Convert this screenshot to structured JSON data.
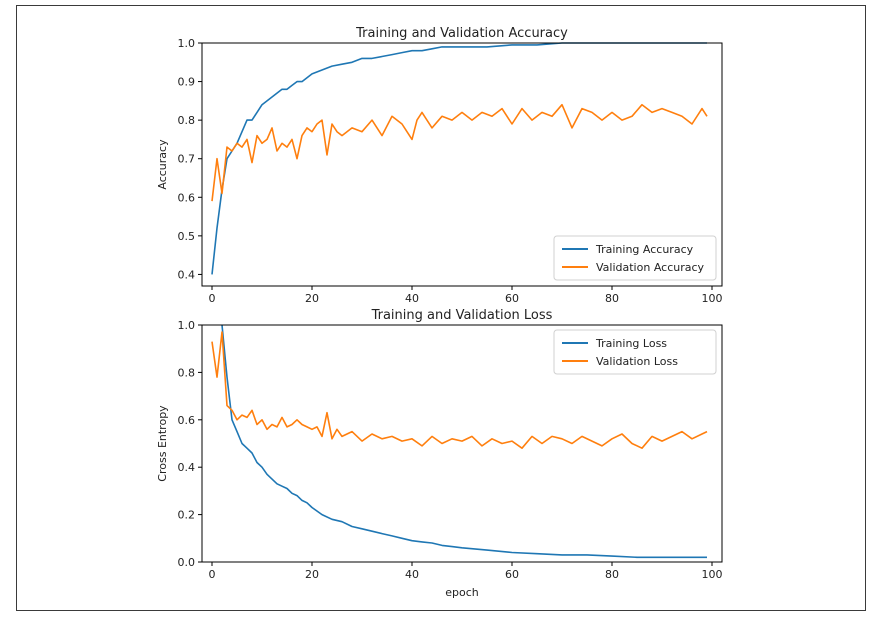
{
  "chart_data": [
    {
      "type": "line",
      "title": "Training and Validation Accuracy",
      "xlabel": "",
      "ylabel": "Accuracy",
      "xlim": [
        -2,
        102
      ],
      "ylim": [
        0.37,
        1.0
      ],
      "xticks": [
        "0",
        "20",
        "40",
        "60",
        "80",
        "100"
      ],
      "yticks": [
        "0.4",
        "0.5",
        "0.6",
        "0.7",
        "0.8",
        "0.9",
        "1.0"
      ],
      "grid": false,
      "legend": "lower-right",
      "series": [
        {
          "name": "Training Accuracy",
          "color": "#1f77b4",
          "x": [
            0,
            1,
            2,
            3,
            4,
            5,
            6,
            7,
            8,
            9,
            10,
            11,
            12,
            13,
            14,
            15,
            16,
            17,
            18,
            19,
            20,
            22,
            24,
            26,
            28,
            30,
            32,
            34,
            36,
            38,
            40,
            42,
            44,
            46,
            48,
            50,
            55,
            60,
            65,
            70,
            75,
            80,
            85,
            90,
            95,
            99
          ],
          "values": [
            0.4,
            0.52,
            0.62,
            0.7,
            0.72,
            0.74,
            0.77,
            0.8,
            0.8,
            0.82,
            0.84,
            0.85,
            0.86,
            0.87,
            0.88,
            0.88,
            0.89,
            0.9,
            0.9,
            0.91,
            0.92,
            0.93,
            0.94,
            0.945,
            0.95,
            0.96,
            0.96,
            0.965,
            0.97,
            0.975,
            0.98,
            0.98,
            0.985,
            0.99,
            0.99,
            0.99,
            0.99,
            0.995,
            0.995,
            1.0,
            1.0,
            1.0,
            1.0,
            1.0,
            1.0,
            1.0
          ]
        },
        {
          "name": "Validation Accuracy",
          "color": "#ff7f0e",
          "x": [
            0,
            1,
            2,
            3,
            4,
            5,
            6,
            7,
            8,
            9,
            10,
            11,
            12,
            13,
            14,
            15,
            16,
            17,
            18,
            19,
            20,
            21,
            22,
            23,
            24,
            25,
            26,
            28,
            30,
            32,
            34,
            36,
            38,
            40,
            41,
            42,
            44,
            46,
            48,
            50,
            52,
            54,
            56,
            58,
            60,
            62,
            64,
            66,
            68,
            70,
            72,
            74,
            76,
            78,
            80,
            82,
            84,
            86,
            88,
            90,
            92,
            94,
            96,
            98,
            99
          ],
          "values": [
            0.59,
            0.7,
            0.61,
            0.73,
            0.72,
            0.74,
            0.73,
            0.75,
            0.69,
            0.76,
            0.74,
            0.75,
            0.78,
            0.72,
            0.74,
            0.73,
            0.75,
            0.7,
            0.76,
            0.78,
            0.77,
            0.79,
            0.8,
            0.71,
            0.79,
            0.77,
            0.76,
            0.78,
            0.77,
            0.8,
            0.76,
            0.81,
            0.79,
            0.75,
            0.8,
            0.82,
            0.78,
            0.81,
            0.8,
            0.82,
            0.8,
            0.82,
            0.81,
            0.83,
            0.79,
            0.83,
            0.8,
            0.82,
            0.81,
            0.84,
            0.78,
            0.83,
            0.82,
            0.8,
            0.82,
            0.8,
            0.81,
            0.84,
            0.82,
            0.83,
            0.82,
            0.81,
            0.79,
            0.83,
            0.81
          ]
        }
      ]
    },
    {
      "type": "line",
      "title": "Training and Validation Loss",
      "xlabel": "epoch",
      "ylabel": "Cross Entropy",
      "xlim": [
        -2,
        102
      ],
      "ylim": [
        0.0,
        1.0
      ],
      "xticks": [
        "0",
        "20",
        "40",
        "60",
        "80",
        "100"
      ],
      "yticks": [
        "0.0",
        "0.2",
        "0.4",
        "0.6",
        "0.8",
        "1.0"
      ],
      "grid": false,
      "legend": "upper-right",
      "series": [
        {
          "name": "Training Loss",
          "color": "#1f77b4",
          "x": [
            2,
            3,
            4,
            5,
            6,
            7,
            8,
            9,
            10,
            11,
            12,
            13,
            14,
            15,
            16,
            17,
            18,
            19,
            20,
            22,
            24,
            26,
            28,
            30,
            32,
            34,
            36,
            38,
            40,
            42,
            44,
            46,
            48,
            50,
            55,
            60,
            65,
            70,
            75,
            80,
            85,
            90,
            95,
            99
          ],
          "values": [
            1.0,
            0.78,
            0.6,
            0.55,
            0.5,
            0.48,
            0.46,
            0.42,
            0.4,
            0.37,
            0.35,
            0.33,
            0.32,
            0.31,
            0.29,
            0.28,
            0.26,
            0.25,
            0.23,
            0.2,
            0.18,
            0.17,
            0.15,
            0.14,
            0.13,
            0.12,
            0.11,
            0.1,
            0.09,
            0.085,
            0.08,
            0.07,
            0.065,
            0.06,
            0.05,
            0.04,
            0.035,
            0.03,
            0.03,
            0.025,
            0.02,
            0.02,
            0.02,
            0.02
          ]
        },
        {
          "name": "Validation Loss",
          "color": "#ff7f0e",
          "x": [
            0,
            1,
            2,
            3,
            4,
            5,
            6,
            7,
            8,
            9,
            10,
            11,
            12,
            13,
            14,
            15,
            16,
            17,
            18,
            19,
            20,
            21,
            22,
            23,
            24,
            25,
            26,
            28,
            30,
            32,
            34,
            36,
            38,
            40,
            42,
            44,
            46,
            48,
            50,
            52,
            54,
            56,
            58,
            60,
            62,
            64,
            66,
            68,
            70,
            72,
            74,
            76,
            78,
            80,
            82,
            84,
            86,
            88,
            90,
            92,
            94,
            96,
            98,
            99
          ],
          "values": [
            0.93,
            0.78,
            0.97,
            0.66,
            0.64,
            0.6,
            0.62,
            0.61,
            0.64,
            0.58,
            0.6,
            0.56,
            0.58,
            0.57,
            0.61,
            0.57,
            0.58,
            0.6,
            0.58,
            0.57,
            0.56,
            0.57,
            0.53,
            0.63,
            0.52,
            0.56,
            0.53,
            0.55,
            0.51,
            0.54,
            0.52,
            0.53,
            0.51,
            0.52,
            0.49,
            0.53,
            0.5,
            0.52,
            0.51,
            0.53,
            0.49,
            0.52,
            0.5,
            0.51,
            0.48,
            0.53,
            0.5,
            0.53,
            0.52,
            0.5,
            0.53,
            0.51,
            0.49,
            0.52,
            0.54,
            0.5,
            0.48,
            0.53,
            0.51,
            0.53,
            0.55,
            0.52,
            0.54,
            0.55
          ]
        }
      ]
    }
  ]
}
